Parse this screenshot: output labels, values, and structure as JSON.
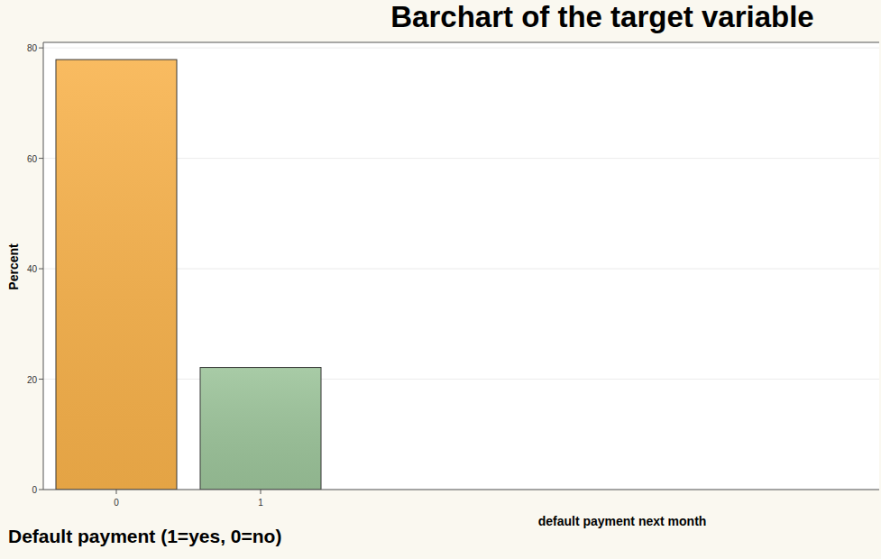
{
  "chart_data": {
    "type": "bar",
    "title": "Barchart of the target variable",
    "x_label": "default payment next month",
    "y_label": "Percent",
    "footnote": "Default payment (1=yes, 0=no)",
    "categories": [
      "0",
      "1"
    ],
    "values": [
      77.88,
      22.12
    ],
    "colors": [
      "#f8b24b",
      "#9cc49a"
    ],
    "ylim": [
      0,
      81
    ],
    "yticks": [
      0,
      20,
      40,
      60,
      80
    ],
    "grid": true
  }
}
